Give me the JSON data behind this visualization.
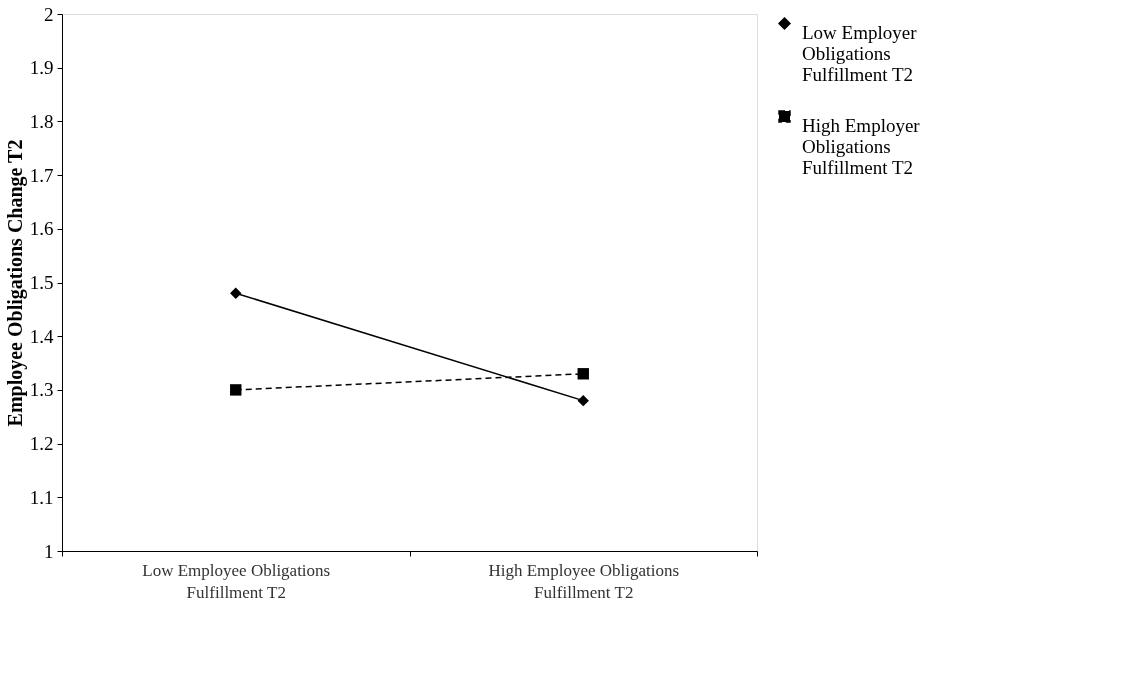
{
  "chart_data": {
    "type": "line",
    "ylabel": "Employee Obligations Change T2",
    "categories": [
      "Low Employee Obligations Fulfillment T2",
      "High Employee Obligations Fulfillment T2"
    ],
    "series": [
      {
        "name": "Low Employer Obligations Fulfillment T2",
        "color": "#000000",
        "values": [
          1.48,
          1.28
        ],
        "marker": "diamond",
        "line_style": "solid"
      },
      {
        "name": "High Employer Obligations Fulfillment T2",
        "color": "#000000",
        "values": [
          1.3,
          1.33
        ],
        "marker": "square",
        "line_style": "dashed"
      }
    ],
    "ylim": [
      1,
      2
    ],
    "yticks": [
      1,
      1.1,
      1.2,
      1.3,
      1.4,
      1.5,
      1.6,
      1.7,
      1.8,
      1.9,
      2
    ],
    "grid": false,
    "legend": "top right"
  }
}
